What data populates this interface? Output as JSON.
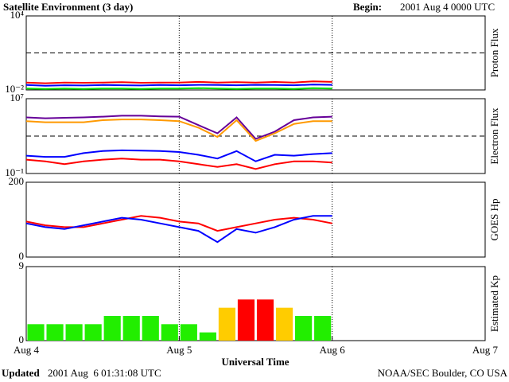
{
  "header": {
    "title": "Satellite Environment (3 day)",
    "begin_label": "Begin:",
    "begin_value": "2001 Aug 4 0000 UTC"
  },
  "footer": {
    "updated_label": "Updated",
    "updated_value": "2001 Aug  6 01:31:08 UTC",
    "source": "NOAA/SEC Boulder, CO USA"
  },
  "x_axis": {
    "label": "Universal Time",
    "xlim": [
      0,
      72
    ],
    "xticks": [
      {
        "value": 0,
        "label": "Aug 4"
      },
      {
        "value": 24,
        "label": "Aug 5"
      },
      {
        "value": 48,
        "label": "Aug 6"
      },
      {
        "value": 72,
        "label": "Aug 7"
      }
    ]
  },
  "chart_data": [
    {
      "type": "line",
      "ylabel": "Proton Flux",
      "log": true,
      "ylim": [
        0.01,
        10000
      ],
      "yticks": [
        {
          "value": 10000,
          "label": "10⁴"
        },
        {
          "value": 0.01,
          "label": "10⁻²"
        }
      ],
      "threshold": 10,
      "x": [
        0,
        3,
        6,
        9,
        12,
        15,
        18,
        21,
        24,
        27,
        30,
        33,
        36,
        39,
        42,
        45,
        48
      ],
      "series": [
        {
          "color": "#ff0000",
          "values": [
            0.04,
            0.035,
            0.04,
            0.038,
            0.04,
            0.042,
            0.038,
            0.04,
            0.04,
            0.045,
            0.04,
            0.042,
            0.04,
            0.044,
            0.04,
            0.05,
            0.045
          ]
        },
        {
          "color": "#0000ff",
          "values": [
            0.025,
            0.022,
            0.024,
            0.023,
            0.025,
            0.024,
            0.023,
            0.025,
            0.024,
            0.026,
            0.025,
            0.024,
            0.026,
            0.025,
            0.024,
            0.027,
            0.026
          ]
        },
        {
          "color": "#00dd00",
          "values": [
            0.013,
            0.012,
            0.013,
            0.012,
            0.013,
            0.013,
            0.012,
            0.013,
            0.013,
            0.014,
            0.013,
            0.012,
            0.013,
            0.013,
            0.012,
            0.014,
            0.013
          ]
        }
      ]
    },
    {
      "type": "line",
      "ylabel": "Electron Flux",
      "log": true,
      "ylim": [
        0.1,
        10000000
      ],
      "yticks": [
        {
          "value": 10000000,
          "label": "10⁷"
        },
        {
          "value": 0.1,
          "label": "10⁻¹"
        }
      ],
      "threshold": 1000,
      "x": [
        0,
        3,
        6,
        9,
        12,
        15,
        18,
        21,
        24,
        27,
        30,
        33,
        36,
        39,
        42,
        45,
        48
      ],
      "series": [
        {
          "color": "#660099",
          "values": [
            100000,
            80000,
            90000,
            100000,
            120000,
            150000,
            150000,
            130000,
            120000,
            15000,
            2000,
            100000,
            500,
            3000,
            50000,
            100000,
            120000
          ]
        },
        {
          "color": "#ff9900",
          "values": [
            40000,
            30000,
            30000,
            30000,
            50000,
            60000,
            60000,
            50000,
            40000,
            8000,
            800,
            50000,
            300,
            2000,
            20000,
            40000,
            40000
          ]
        },
        {
          "color": "#0000ff",
          "values": [
            8,
            6,
            6,
            15,
            25,
            30,
            28,
            25,
            20,
            10,
            4,
            25,
            2,
            10,
            8,
            12,
            15
          ]
        },
        {
          "color": "#ff0000",
          "values": [
            3,
            2,
            1,
            2,
            3,
            4,
            3,
            3,
            2,
            1,
            0.5,
            1,
            0.3,
            1,
            2,
            2,
            1.5
          ]
        }
      ]
    },
    {
      "type": "line",
      "ylabel": "GOES Hp",
      "log": false,
      "ylim": [
        0,
        200
      ],
      "yticks": [
        200,
        0
      ],
      "x": [
        0,
        3,
        6,
        9,
        12,
        15,
        18,
        21,
        24,
        27,
        30,
        33,
        36,
        39,
        42,
        45,
        48
      ],
      "series": [
        {
          "color": "#ff0000",
          "values": [
            95,
            85,
            80,
            80,
            90,
            100,
            110,
            105,
            95,
            90,
            70,
            80,
            90,
            100,
            105,
            100,
            90
          ]
        },
        {
          "color": "#0000ff",
          "values": [
            90,
            80,
            75,
            85,
            95,
            105,
            100,
            90,
            80,
            70,
            40,
            75,
            65,
            80,
            100,
            110,
            110
          ]
        }
      ]
    },
    {
      "type": "bar",
      "ylabel": "Estimated Kp",
      "log": false,
      "ylim": [
        0,
        9
      ],
      "yticks": [
        9,
        0
      ],
      "x": [
        1.5,
        4.5,
        7.5,
        10.5,
        13.5,
        16.5,
        19.5,
        22.5,
        25.5,
        28.5,
        31.5,
        34.5,
        37.5,
        40.5,
        43.5,
        46.5
      ],
      "values": [
        2,
        2,
        2,
        2,
        3,
        3,
        3,
        2,
        2,
        1,
        4,
        5,
        5,
        4,
        3,
        3
      ],
      "colors": [
        "#22ee00",
        "#22ee00",
        "#22ee00",
        "#22ee00",
        "#22ee00",
        "#22ee00",
        "#22ee00",
        "#22ee00",
        "#22ee00",
        "#22ee00",
        "#ffcc00",
        "#ff0000",
        "#ff0000",
        "#ffcc00",
        "#22ee00",
        "#22ee00"
      ]
    }
  ]
}
